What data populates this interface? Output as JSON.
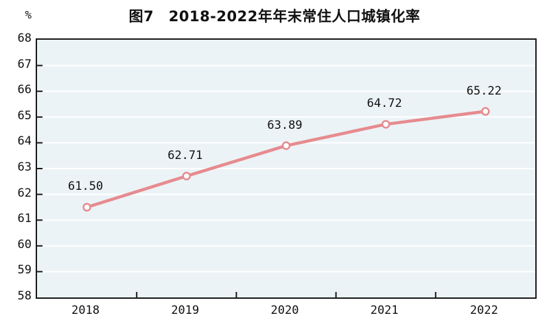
{
  "chart_data": {
    "type": "line",
    "title": "图7　2018-2022年年末常住人口城镇化率",
    "unit_label": "%",
    "categories": [
      "2018",
      "2019",
      "2020",
      "2021",
      "2022"
    ],
    "values": [
      61.5,
      62.71,
      63.89,
      64.72,
      65.22
    ],
    "data_labels": [
      "61.50",
      "62.71",
      "63.89",
      "64.72",
      "65.22"
    ],
    "xlabel": "",
    "ylabel": "%",
    "ylim": [
      58,
      68
    ],
    "ytick_step": 1,
    "yticks": [
      68,
      67,
      66,
      65,
      64,
      63,
      62,
      61,
      60,
      59,
      58
    ],
    "grid": "horizontal-white",
    "legend": "none",
    "colors": {
      "line": "#e68b8f",
      "marker_fill": "#ffffff",
      "marker_stroke": "#e68b8f",
      "plot_background": "#ecf3f6",
      "gridline": "#ffffff",
      "axis": "#1a1a1a",
      "text": "#111111",
      "page_background": "#ffffff"
    }
  }
}
